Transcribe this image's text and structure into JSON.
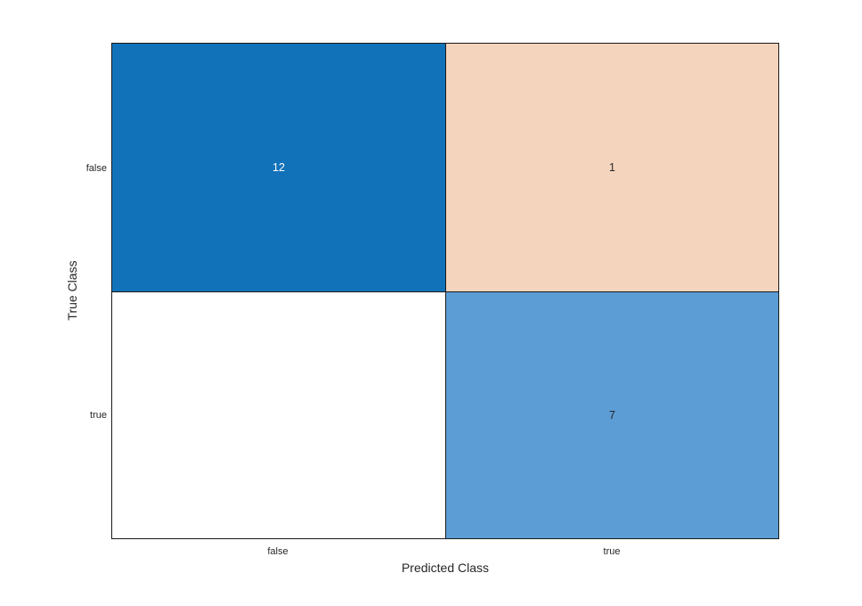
{
  "chart_data": {
    "type": "heatmap",
    "subtype": "confusion-matrix",
    "title": "",
    "xlabel": "Predicted Class",
    "ylabel": "True Class",
    "x_categories": [
      "false",
      "true"
    ],
    "y_categories": [
      "false",
      "true"
    ],
    "matrix": [
      [
        12,
        1
      ],
      [
        null,
        7
      ]
    ],
    "legend": "none",
    "grid_line_color": "#1a1a1a",
    "axis_text_color": "#262626",
    "background_color": "#ffffff",
    "cells": [
      {
        "true_class": "false",
        "predicted_class": "false",
        "value": "12",
        "bg": "#1272b9",
        "fg": "#ffffff",
        "css": "background:#1272b9;color:#ffffff"
      },
      {
        "true_class": "false",
        "predicted_class": "true",
        "value": "1",
        "bg": "#f5d4bd",
        "fg": "#262626",
        "css": "background:#f5d4bd;color:#262626"
      },
      {
        "true_class": "true",
        "predicted_class": "false",
        "value": "",
        "bg": "#ffffff",
        "fg": "#262626",
        "css": "background:#ffffff;color:#262626"
      },
      {
        "true_class": "true",
        "predicted_class": "true",
        "value": "7",
        "bg": "#5d9dd5",
        "fg": "#262626",
        "css": "background:#5d9dd5;color:#262626"
      }
    ]
  }
}
